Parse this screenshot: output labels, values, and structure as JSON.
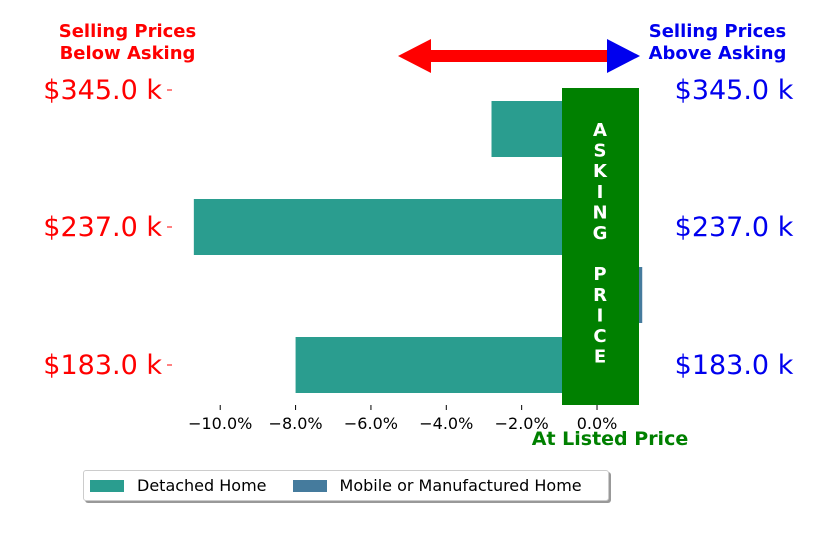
{
  "header": {
    "left_line1": "Selling Prices",
    "left_line2": "Below Asking",
    "right_line1": "Selling Prices",
    "right_line2": "Above Asking",
    "left_color": "#ff0000",
    "right_color": "#0000ee"
  },
  "asking_price": {
    "letters": [
      "A",
      "S",
      "K",
      "I",
      "N",
      "G",
      "",
      "P",
      "R",
      "I",
      "C",
      "E"
    ],
    "color": "#008000"
  },
  "at_listed_label": "At Listed Price",
  "chart_data": {
    "type": "bar",
    "orientation": "horizontal",
    "categories": [
      "$345.0 k",
      "$237.0 k",
      "$183.0 k"
    ],
    "series": [
      {
        "name": "Detached Home",
        "color": "#2a9d8f",
        "values": [
          -2.8,
          -10.7,
          -8.0
        ]
      },
      {
        "name": "Mobile or Manufactured Home",
        "color": "#457b9d",
        "values": [
          null,
          1.2,
          null
        ]
      }
    ],
    "xlim": [
      -11.2,
      1.3
    ],
    "xticks": [
      -10,
      -8,
      -6,
      -4,
      -2,
      0
    ],
    "xtick_labels": [
      "−10.0%",
      "−8.0%",
      "−6.0%",
      "−4.0%",
      "−2.0%",
      "0.0%"
    ],
    "left_label_color": "#ff0000",
    "right_label_color": "#0000ee",
    "grid": false,
    "legend_position": "bottom"
  }
}
